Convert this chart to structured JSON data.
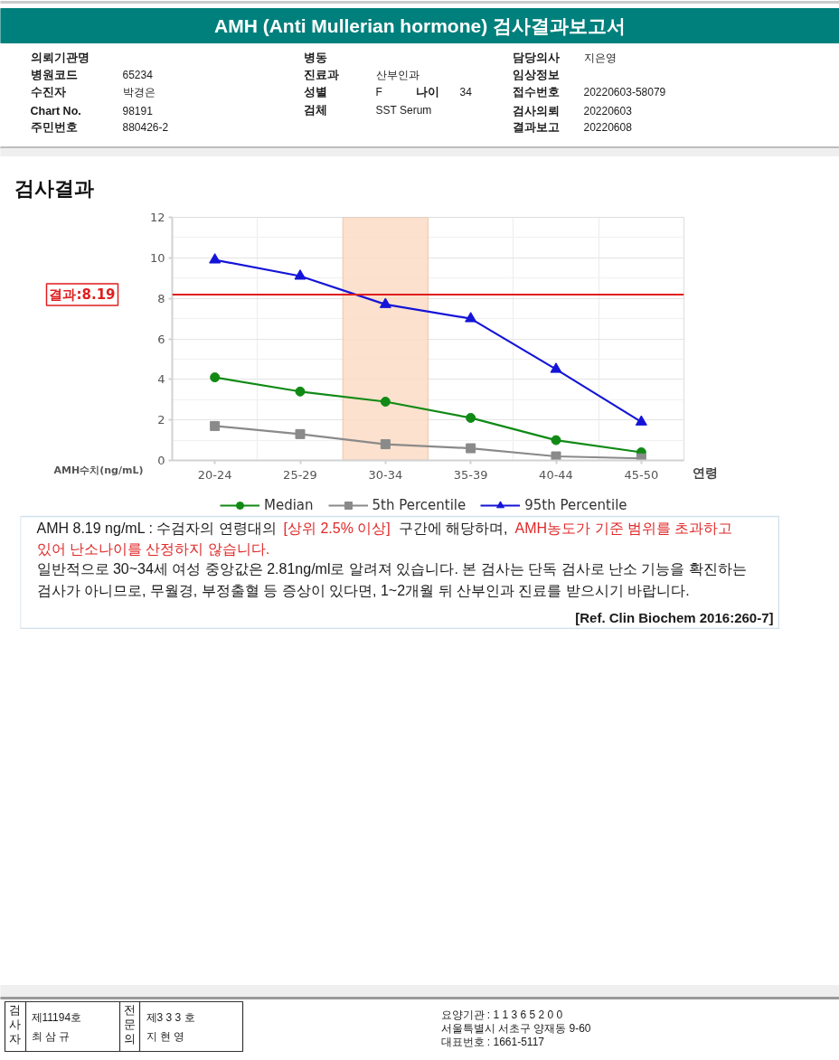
{
  "chart_data": {
    "type": "line",
    "title": "AMH (Anti Mullerian hormone) 검사결과보고서",
    "subtitle": "검사결과",
    "xlabel": "연령",
    "ylabel": "AMH수치(ng/mL)",
    "categories": [
      "20-24",
      "25-29",
      "30-34",
      "35-39",
      "40-44",
      "45-50"
    ],
    "series": [
      {
        "name": "Median",
        "color": "#108a14",
        "marker": "circle",
        "values": [
          4.1,
          3.4,
          2.9,
          2.1,
          1.0,
          0.4
        ]
      },
      {
        "name": "5th Percentile",
        "color": "#8a8a8a",
        "marker": "square",
        "values": [
          1.7,
          1.3,
          0.8,
          0.6,
          0.2,
          0.1
        ]
      },
      {
        "name": "95th Percentile",
        "color": "#1414d8",
        "marker": "triangle",
        "values": [
          9.9,
          9.1,
          7.7,
          7.0,
          4.5,
          1.9
        ]
      }
    ],
    "ylim": [
      0,
      12
    ],
    "yticks": [
      0,
      2,
      4,
      6,
      8,
      10,
      12
    ],
    "grid": true,
    "legend": "bottom",
    "line_style": "solid",
    "ref_lines": [
      {
        "axis": "y",
        "value": 8.19,
        "label": "결과:8.19",
        "color": "#e01e1e"
      }
    ],
    "bands": [
      {
        "axis": "x",
        "from": "30-34",
        "to": "30-34",
        "color": "#fbdcc6"
      }
    ],
    "annotations": [
      "의뢰기관명",
      "병원코드",
      "65234",
      "수진자",
      "박경은",
      "Chart No.",
      "98191",
      "주민번호",
      "880426-2",
      "병동",
      "진료과",
      "산부인과",
      "성별",
      "F",
      "나이",
      "34",
      "검체",
      "SST Serum",
      "담당의사",
      "지은영",
      "임상정보",
      "접수번호",
      "20220603-58079",
      "검사의뢰",
      "20220603",
      "결과보고",
      "20220608",
      "AMH 8.19 ng/mL : 수검자의 연령대의",
      "[상위 2.5% 이상]",
      "구간에 해당하며,",
      "AMH농도가 기준 범위를 초과하고",
      "있어 난소나이를 산정하지 않습니다.",
      "일반적으로 30~34세 여성 중앙값은 2.81ng/ml로 알려져 있습니다. 본 검사는 단독 검사로 난소 기능을 확진하는",
      "검사가 아니므로, 무월경, 부정출혈 등 증상이 있다면, 1~2개월 뒤 산부인과 진료를 받으시기 바랍니다.",
      "[Ref. Clin Biochem 2016:260-7]",
      "검사자",
      "제11194호",
      "최 삼 규",
      "전문의",
      "제3 3 3 호",
      "지 현 영",
      "요양기관 : 1 1 3 6 5 2 0 0",
      "서울특별시 서초구 양재동 9-60",
      "대표번호 : 1661-5117"
    ]
  }
}
